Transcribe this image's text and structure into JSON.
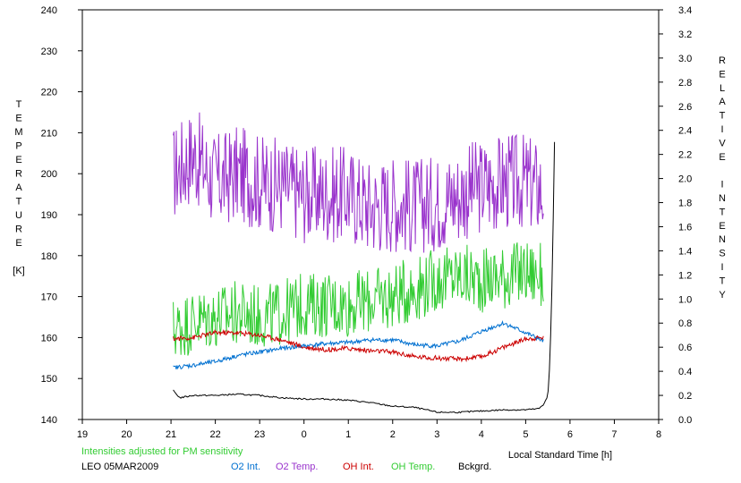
{
  "chart_data": {
    "type": "line",
    "xlabel": "Local Standard Time [h]",
    "ylabel_left": [
      "T",
      "E",
      "M",
      "P",
      "E",
      "R",
      "A",
      "T",
      "U",
      "R",
      "E",
      "",
      "[K]"
    ],
    "ylabel_right": [
      "R",
      "E",
      "L",
      "A",
      "T",
      "I",
      "V",
      "E",
      "",
      "I",
      "N",
      "T",
      "E",
      "N",
      "S",
      "I",
      "T",
      "Y"
    ],
    "note": "Intensities adjusted for PM sensitivity",
    "station": "LEO 05MAR2009",
    "x_ticks": [
      "19",
      "20",
      "21",
      "22",
      "23",
      "0",
      "1",
      "2",
      "3",
      "4",
      "5",
      "6",
      "7",
      "8"
    ],
    "y_left_ticks": [
      "140",
      "150",
      "160",
      "170",
      "180",
      "190",
      "200",
      "210",
      "220",
      "230",
      "240"
    ],
    "y_right_ticks": [
      "0.0",
      "0.2",
      "0.4",
      "0.6",
      "0.8",
      "1.0",
      "1.2",
      "1.4",
      "1.6",
      "1.8",
      "2.0",
      "2.2",
      "2.4",
      "2.6",
      "2.8",
      "3.0",
      "3.2",
      "3.4"
    ],
    "xlim": [
      19,
      32
    ],
    "ylim_left": [
      140,
      240
    ],
    "ylim_right": [
      0,
      3.4
    ],
    "grid": false,
    "legend": [
      {
        "label": "O2 Int.",
        "color": "#0070d0"
      },
      {
        "label": "O2 Temp.",
        "color": "#9933cc"
      },
      {
        "label": "OH Int.",
        "color": "#cc0000"
      },
      {
        "label": "OH Temp.",
        "color": "#33cc33"
      },
      {
        "label": "Bckgrd.",
        "color": "#000000"
      }
    ],
    "series": [
      {
        "name": "O2 Temp.",
        "axis": "left",
        "color": "#9933cc",
        "x": [
          21.05,
          21.5,
          22.0,
          22.5,
          23.0,
          23.5,
          24.0,
          24.5,
          25.0,
          25.5,
          26.0,
          26.5,
          27.0,
          27.5,
          28.0,
          28.5,
          29.0,
          29.4
        ],
        "y": [
          200,
          205,
          198,
          200,
          198,
          197,
          195,
          195,
          195,
          192,
          193,
          192,
          193,
          195,
          197,
          198,
          198,
          196
        ],
        "amp": 12
      },
      {
        "name": "OH Temp.",
        "axis": "left",
        "color": "#33cc33",
        "x": [
          21.05,
          21.5,
          22.0,
          22.5,
          23.0,
          23.5,
          24.0,
          24.5,
          25.0,
          25.5,
          26.0,
          26.5,
          27.0,
          27.5,
          28.0,
          28.5,
          29.0,
          29.4
        ],
        "y": [
          162,
          164,
          165,
          166,
          165,
          166,
          168,
          168,
          168,
          169,
          170,
          172,
          174,
          175,
          174,
          175,
          176,
          175
        ],
        "amp": 8
      },
      {
        "name": "O2 Int.",
        "axis": "right",
        "color": "#0070d0",
        "x": [
          21.05,
          21.5,
          22.0,
          22.5,
          23.0,
          23.5,
          24.0,
          24.5,
          25.0,
          25.5,
          26.0,
          26.5,
          27.0,
          27.5,
          28.0,
          28.5,
          29.0,
          29.4
        ],
        "y": [
          0.43,
          0.45,
          0.48,
          0.53,
          0.56,
          0.59,
          0.61,
          0.63,
          0.64,
          0.66,
          0.66,
          0.62,
          0.61,
          0.65,
          0.73,
          0.8,
          0.72,
          0.65
        ],
        "amp": 0.018
      },
      {
        "name": "OH Int.",
        "axis": "right",
        "color": "#cc0000",
        "x": [
          21.05,
          21.5,
          22.0,
          22.5,
          23.0,
          23.5,
          24.0,
          24.5,
          25.0,
          25.5,
          26.0,
          26.5,
          27.0,
          27.5,
          28.0,
          28.5,
          29.0,
          29.4
        ],
        "y": [
          0.67,
          0.68,
          0.72,
          0.72,
          0.7,
          0.66,
          0.6,
          0.58,
          0.59,
          0.57,
          0.56,
          0.52,
          0.51,
          0.5,
          0.52,
          0.6,
          0.67,
          0.68
        ],
        "amp": 0.02
      },
      {
        "name": "Bckgrd.",
        "axis": "right",
        "color": "#000000",
        "x": [
          21.05,
          21.2,
          21.5,
          22.0,
          22.5,
          23.0,
          23.5,
          24.0,
          24.5,
          25.0,
          25.5,
          26.0,
          26.5,
          27.0,
          27.5,
          28.0,
          28.5,
          29.0,
          29.3,
          29.4,
          29.5,
          29.55,
          29.6,
          29.65
        ],
        "y": [
          0.24,
          0.18,
          0.2,
          0.2,
          0.21,
          0.2,
          0.18,
          0.17,
          0.17,
          0.16,
          0.14,
          0.11,
          0.1,
          0.06,
          0.06,
          0.07,
          0.08,
          0.08,
          0.09,
          0.12,
          0.2,
          0.5,
          1.2,
          2.3
        ],
        "amp": 0.006
      }
    ]
  }
}
